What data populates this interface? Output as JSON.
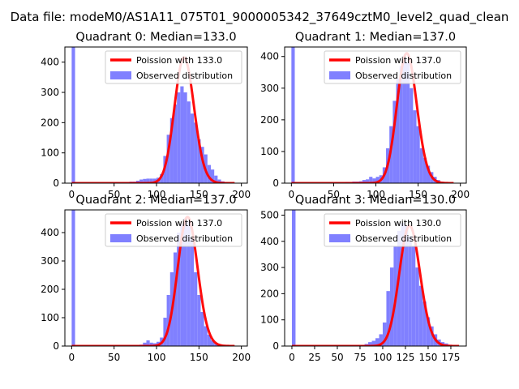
{
  "suptitle": "Data file: modeM0/AS1A11_075T01_9000005342_37649cztM0_level2_quad_clean",
  "chart_data": [
    {
      "type": "bar",
      "title": "Quadrant 0: Median=133.0",
      "xlim": [
        -8,
        207
      ],
      "ylim": [
        0,
        450
      ],
      "xticks": [
        0,
        50,
        100,
        150,
        200
      ],
      "yticks": [
        0,
        100,
        200,
        300,
        400
      ],
      "bin_width": 4,
      "hist_x": [
        0,
        4,
        8,
        12,
        16,
        20,
        24,
        28,
        32,
        36,
        40,
        44,
        48,
        52,
        56,
        60,
        64,
        68,
        72,
        76,
        80,
        84,
        88,
        92,
        96,
        100,
        104,
        108,
        112,
        116,
        120,
        124,
        128,
        132,
        136,
        140,
        144,
        148,
        152,
        156,
        160,
        164,
        168,
        172,
        176,
        180,
        184,
        188
      ],
      "hist_y": [
        450,
        2,
        1,
        0,
        0,
        0,
        1,
        0,
        1,
        0,
        1,
        2,
        3,
        4,
        3,
        4,
        4,
        5,
        5,
        8,
        12,
        14,
        15,
        15,
        15,
        18,
        30,
        90,
        160,
        215,
        260,
        300,
        320,
        300,
        270,
        230,
        200,
        145,
        120,
        95,
        60,
        45,
        25,
        12,
        6,
        3,
        1,
        1
      ],
      "poisson_lambda": 133.0,
      "poisson_scale": 415,
      "legend": [
        {
          "label": "Poission with 133.0",
          "color": "#ff0000",
          "kind": "line"
        },
        {
          "label": "Observed distribution",
          "color": "#8080ff",
          "kind": "patch"
        }
      ]
    },
    {
      "type": "bar",
      "title": "Quadrant 1: Median=137.0",
      "xlim": [
        -8,
        207
      ],
      "ylim": [
        0,
        430
      ],
      "xticks": [
        0,
        50,
        100,
        150,
        200
      ],
      "yticks": [
        0,
        100,
        200,
        300,
        400
      ],
      "bin_width": 4,
      "hist_x": [
        0,
        4,
        8,
        12,
        16,
        20,
        24,
        28,
        32,
        36,
        40,
        44,
        48,
        52,
        56,
        60,
        64,
        68,
        72,
        76,
        80,
        84,
        88,
        92,
        96,
        100,
        104,
        108,
        112,
        116,
        120,
        124,
        128,
        132,
        136,
        140,
        144,
        148,
        152,
        156,
        160,
        164,
        168,
        172,
        176,
        180,
        184,
        188
      ],
      "hist_y": [
        430,
        2,
        1,
        0,
        0,
        0,
        0,
        1,
        0,
        1,
        1,
        2,
        2,
        3,
        3,
        3,
        4,
        4,
        5,
        5,
        6,
        10,
        12,
        20,
        15,
        20,
        25,
        50,
        110,
        180,
        260,
        330,
        370,
        400,
        380,
        300,
        230,
        180,
        110,
        80,
        55,
        35,
        20,
        10,
        5,
        2,
        1,
        1
      ],
      "poisson_lambda": 137.0,
      "poisson_scale": 410,
      "legend": [
        {
          "label": "Poission with 137.0",
          "color": "#ff0000",
          "kind": "line"
        },
        {
          "label": "Observed distribution",
          "color": "#8080ff",
          "kind": "patch"
        }
      ]
    },
    {
      "type": "bar",
      "title": "Quadrant 2: Median=137.0",
      "xlim": [
        -8,
        207
      ],
      "ylim": [
        0,
        480
      ],
      "xticks": [
        0,
        50,
        100,
        150,
        200
      ],
      "yticks": [
        0,
        100,
        200,
        300,
        400
      ],
      "bin_width": 4,
      "hist_x": [
        0,
        4,
        8,
        12,
        16,
        20,
        24,
        28,
        32,
        36,
        40,
        44,
        48,
        52,
        56,
        60,
        64,
        68,
        72,
        76,
        80,
        84,
        88,
        92,
        96,
        100,
        104,
        108,
        112,
        116,
        120,
        124,
        128,
        132,
        136,
        140,
        144,
        148,
        152,
        156,
        160,
        164,
        168,
        172,
        176,
        180,
        184,
        188
      ],
      "hist_y": [
        480,
        1,
        1,
        0,
        0,
        0,
        0,
        1,
        0,
        0,
        1,
        1,
        1,
        2,
        2,
        2,
        2,
        3,
        3,
        3,
        5,
        12,
        20,
        12,
        10,
        15,
        30,
        100,
        180,
        260,
        330,
        400,
        430,
        450,
        440,
        380,
        260,
        180,
        120,
        70,
        40,
        20,
        10,
        5,
        3,
        2,
        1,
        1
      ],
      "poisson_lambda": 137.0,
      "poisson_scale": 455,
      "legend": [
        {
          "label": "Poission with 137.0",
          "color": "#ff0000",
          "kind": "line"
        },
        {
          "label": "Observed distribution",
          "color": "#8080ff",
          "kind": "patch"
        }
      ]
    },
    {
      "type": "bar",
      "title": "Quadrant 3: Median=130.0",
      "xlim": [
        -8,
        192
      ],
      "ylim": [
        0,
        520
      ],
      "xticks": [
        0,
        25,
        50,
        75,
        100,
        125,
        150,
        175
      ],
      "yticks": [
        0,
        100,
        200,
        300,
        400,
        500
      ],
      "bin_width": 4,
      "hist_x": [
        0,
        4,
        8,
        12,
        16,
        20,
        24,
        28,
        32,
        36,
        40,
        44,
        48,
        52,
        56,
        60,
        64,
        68,
        72,
        76,
        80,
        84,
        88,
        92,
        96,
        100,
        104,
        108,
        112,
        116,
        120,
        124,
        128,
        132,
        136,
        140,
        144,
        148,
        152,
        156,
        160,
        164,
        168,
        172,
        176,
        180
      ],
      "hist_y": [
        520,
        1,
        1,
        0,
        0,
        0,
        0,
        1,
        0,
        0,
        1,
        1,
        1,
        2,
        2,
        2,
        3,
        3,
        4,
        4,
        8,
        15,
        20,
        30,
        45,
        90,
        210,
        300,
        380,
        440,
        470,
        460,
        420,
        380,
        300,
        230,
        170,
        110,
        75,
        45,
        25,
        15,
        10,
        5,
        2,
        1
      ],
      "poisson_lambda": 130.0,
      "poisson_scale": 460,
      "legend": [
        {
          "label": "Poission with 130.0",
          "color": "#ff0000",
          "kind": "line"
        },
        {
          "label": "Observed distribution",
          "color": "#8080ff",
          "kind": "patch"
        }
      ]
    }
  ]
}
